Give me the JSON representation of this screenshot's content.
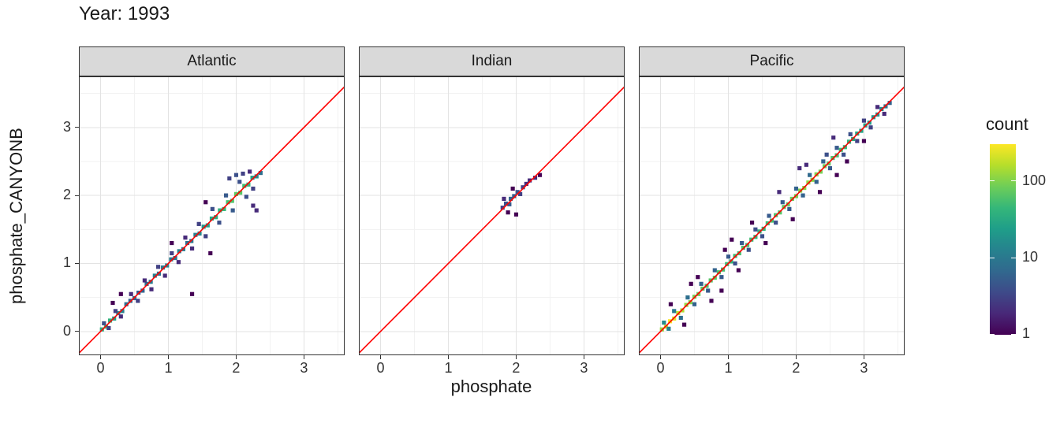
{
  "colors": {
    "background": "#FFFFFF",
    "reference_line": "#FF0000",
    "strip_fill": "#D9D9D9",
    "panel_border": "#333333",
    "grid_major": "#E3E3E3",
    "grid_minor": "#F2F2F2",
    "tick_text": "#333333",
    "title_text": "#1A1A1A",
    "legend_tick_mark": "#FFFFFF"
  },
  "chart_data": {
    "type": "heatmap",
    "subtype": "bin2d-faceted-scatter",
    "title": "Year: 1993",
    "xlabel": "phosphate",
    "ylabel": "phosphate_CANYONB",
    "x_ticks": [
      0,
      1,
      2,
      3
    ],
    "y_ticks": [
      0,
      1,
      2,
      3
    ],
    "xlim": [
      -0.32,
      3.6
    ],
    "ylim": [
      -0.35,
      3.75
    ],
    "grid": true,
    "bin_size": 0.06,
    "reference_line": {
      "type": "identity",
      "label": "y = x",
      "color": "#FF0000"
    },
    "legend": {
      "title": "count",
      "position": "right",
      "scale": "log10",
      "ticks": [
        100,
        10,
        1
      ],
      "min": 1,
      "max": 300
    },
    "colormap": {
      "name": "viridis",
      "stops": [
        [
          0.0,
          "#440154"
        ],
        [
          0.111,
          "#482878"
        ],
        [
          0.222,
          "#3e4a89"
        ],
        [
          0.333,
          "#31688e"
        ],
        [
          0.444,
          "#26828e"
        ],
        [
          0.556,
          "#1f9e89"
        ],
        [
          0.667,
          "#35b779"
        ],
        [
          0.778,
          "#6ece58"
        ],
        [
          0.889,
          "#b5de2b"
        ],
        [
          1.0,
          "#fde725"
        ]
      ]
    },
    "facets": [
      {
        "label": "Atlantic",
        "bins": [
          [
            0.02,
            0.03,
            35
          ],
          [
            0.08,
            0.07,
            50
          ],
          [
            0.14,
            0.16,
            40
          ],
          [
            0.2,
            0.19,
            25
          ],
          [
            0.26,
            0.27,
            18
          ],
          [
            0.32,
            0.3,
            12
          ],
          [
            0.38,
            0.4,
            8
          ],
          [
            0.44,
            0.45,
            6
          ],
          [
            0.5,
            0.49,
            7
          ],
          [
            0.56,
            0.57,
            5
          ],
          [
            0.62,
            0.6,
            6
          ],
          [
            0.68,
            0.7,
            8
          ],
          [
            0.74,
            0.73,
            10
          ],
          [
            0.8,
            0.82,
            12
          ],
          [
            0.86,
            0.85,
            9
          ],
          [
            0.92,
            0.94,
            11
          ],
          [
            0.98,
            0.97,
            14
          ],
          [
            1.04,
            1.06,
            10
          ],
          [
            1.1,
            1.08,
            9
          ],
          [
            1.16,
            1.18,
            12
          ],
          [
            1.22,
            1.21,
            10
          ],
          [
            1.28,
            1.3,
            8
          ],
          [
            1.34,
            1.33,
            9
          ],
          [
            1.4,
            1.42,
            12
          ],
          [
            1.46,
            1.44,
            15
          ],
          [
            1.52,
            1.54,
            20
          ],
          [
            1.58,
            1.56,
            25
          ],
          [
            1.64,
            1.66,
            30
          ],
          [
            1.7,
            1.68,
            35
          ],
          [
            1.76,
            1.78,
            40
          ],
          [
            1.82,
            1.8,
            45
          ],
          [
            1.88,
            1.9,
            55
          ],
          [
            1.94,
            1.92,
            60
          ],
          [
            2.0,
            2.02,
            70
          ],
          [
            2.06,
            2.04,
            65
          ],
          [
            2.12,
            2.14,
            50
          ],
          [
            2.18,
            2.16,
            40
          ],
          [
            2.24,
            2.26,
            25
          ],
          [
            2.3,
            2.28,
            15
          ],
          [
            2.36,
            2.33,
            8
          ],
          [
            0.05,
            0.12,
            4
          ],
          [
            0.12,
            0.05,
            3
          ],
          [
            0.22,
            0.3,
            3
          ],
          [
            0.3,
            0.22,
            2
          ],
          [
            0.45,
            0.55,
            2
          ],
          [
            0.55,
            0.45,
            3
          ],
          [
            0.65,
            0.75,
            2
          ],
          [
            0.75,
            0.62,
            2
          ],
          [
            0.85,
            0.95,
            3
          ],
          [
            0.95,
            0.82,
            2
          ],
          [
            1.05,
            1.15,
            3
          ],
          [
            1.15,
            1.02,
            2
          ],
          [
            1.25,
            1.38,
            2
          ],
          [
            1.35,
            1.22,
            2
          ],
          [
            1.45,
            1.58,
            3
          ],
          [
            1.55,
            1.4,
            3
          ],
          [
            1.65,
            1.8,
            4
          ],
          [
            1.75,
            1.6,
            4
          ],
          [
            1.85,
            2.0,
            5
          ],
          [
            1.95,
            1.78,
            5
          ],
          [
            2.05,
            2.2,
            4
          ],
          [
            2.15,
            1.98,
            4
          ],
          [
            2.25,
            2.1,
            3
          ],
          [
            1.9,
            2.25,
            3
          ],
          [
            2.0,
            2.3,
            4
          ],
          [
            2.1,
            2.32,
            3
          ],
          [
            2.2,
            2.35,
            2
          ],
          [
            1.35,
            0.55,
            1
          ],
          [
            1.62,
            1.15,
            1
          ],
          [
            1.05,
            1.3,
            1
          ],
          [
            2.3,
            1.78,
            2
          ],
          [
            2.25,
            1.85,
            2
          ],
          [
            1.55,
            1.9,
            1
          ],
          [
            0.3,
            0.55,
            1
          ],
          [
            0.18,
            0.42,
            1
          ]
        ]
      },
      {
        "label": "Indian",
        "bins": [
          [
            1.8,
            1.82,
            3
          ],
          [
            1.85,
            1.88,
            4
          ],
          [
            1.9,
            1.87,
            5
          ],
          [
            1.92,
            1.95,
            6
          ],
          [
            1.97,
            1.99,
            5
          ],
          [
            2.02,
            2.05,
            4
          ],
          [
            2.06,
            2.02,
            3
          ],
          [
            2.1,
            2.12,
            3
          ],
          [
            2.15,
            2.17,
            2
          ],
          [
            2.2,
            2.22,
            2
          ],
          [
            2.28,
            2.26,
            2
          ],
          [
            2.35,
            2.3,
            1
          ],
          [
            1.88,
            1.75,
            1
          ],
          [
            2.0,
            1.72,
            1
          ],
          [
            1.95,
            2.1,
            1
          ],
          [
            1.82,
            1.95,
            2
          ]
        ]
      },
      {
        "label": "Pacific",
        "bins": [
          [
            0.02,
            0.03,
            120
          ],
          [
            0.08,
            0.07,
            200
          ],
          [
            0.14,
            0.15,
            290
          ],
          [
            0.2,
            0.19,
            240
          ],
          [
            0.26,
            0.27,
            180
          ],
          [
            0.32,
            0.31,
            150
          ],
          [
            0.38,
            0.39,
            120
          ],
          [
            0.44,
            0.43,
            100
          ],
          [
            0.5,
            0.51,
            90
          ],
          [
            0.56,
            0.55,
            80
          ],
          [
            0.62,
            0.63,
            70
          ],
          [
            0.68,
            0.67,
            60
          ],
          [
            0.74,
            0.75,
            65
          ],
          [
            0.8,
            0.79,
            70
          ],
          [
            0.86,
            0.87,
            60
          ],
          [
            0.92,
            0.91,
            55
          ],
          [
            0.98,
            0.99,
            50
          ],
          [
            1.04,
            1.03,
            45
          ],
          [
            1.1,
            1.11,
            50
          ],
          [
            1.16,
            1.15,
            55
          ],
          [
            1.22,
            1.23,
            60
          ],
          [
            1.28,
            1.27,
            55
          ],
          [
            1.34,
            1.35,
            50
          ],
          [
            1.4,
            1.39,
            45
          ],
          [
            1.46,
            1.47,
            40
          ],
          [
            1.52,
            1.51,
            45
          ],
          [
            1.58,
            1.59,
            50
          ],
          [
            1.64,
            1.63,
            55
          ],
          [
            1.7,
            1.71,
            60
          ],
          [
            1.76,
            1.75,
            65
          ],
          [
            1.82,
            1.83,
            70
          ],
          [
            1.88,
            1.87,
            75
          ],
          [
            1.94,
            1.95,
            80
          ],
          [
            2.0,
            1.99,
            90
          ],
          [
            2.06,
            2.07,
            100
          ],
          [
            2.12,
            2.11,
            110
          ],
          [
            2.18,
            2.19,
            120
          ],
          [
            2.24,
            2.23,
            110
          ],
          [
            2.3,
            2.31,
            100
          ],
          [
            2.36,
            2.35,
            90
          ],
          [
            2.42,
            2.43,
            80
          ],
          [
            2.48,
            2.47,
            70
          ],
          [
            2.54,
            2.55,
            60
          ],
          [
            2.6,
            2.59,
            55
          ],
          [
            2.66,
            2.67,
            50
          ],
          [
            2.72,
            2.71,
            45
          ],
          [
            2.78,
            2.79,
            40
          ],
          [
            2.84,
            2.83,
            35
          ],
          [
            2.9,
            2.91,
            30
          ],
          [
            2.96,
            2.95,
            28
          ],
          [
            3.02,
            3.03,
            25
          ],
          [
            3.08,
            3.07,
            22
          ],
          [
            3.14,
            3.15,
            20
          ],
          [
            3.2,
            3.19,
            18
          ],
          [
            3.26,
            3.27,
            15
          ],
          [
            3.32,
            3.31,
            10
          ],
          [
            3.38,
            3.36,
            6
          ],
          [
            0.05,
            0.13,
            15
          ],
          [
            0.12,
            0.04,
            12
          ],
          [
            0.2,
            0.3,
            10
          ],
          [
            0.3,
            0.2,
            8
          ],
          [
            0.4,
            0.5,
            8
          ],
          [
            0.5,
            0.4,
            6
          ],
          [
            0.6,
            0.7,
            6
          ],
          [
            0.7,
            0.6,
            5
          ],
          [
            0.8,
            0.9,
            6
          ],
          [
            0.9,
            0.8,
            5
          ],
          [
            1.0,
            1.1,
            5
          ],
          [
            1.1,
            1.0,
            4
          ],
          [
            1.2,
            1.3,
            5
          ],
          [
            1.3,
            1.2,
            4
          ],
          [
            1.4,
            1.5,
            4
          ],
          [
            1.5,
            1.4,
            4
          ],
          [
            1.6,
            1.7,
            5
          ],
          [
            1.7,
            1.6,
            4
          ],
          [
            1.8,
            1.9,
            5
          ],
          [
            1.9,
            1.8,
            5
          ],
          [
            2.0,
            2.1,
            6
          ],
          [
            2.1,
            2.0,
            6
          ],
          [
            2.2,
            2.3,
            7
          ],
          [
            2.3,
            2.2,
            6
          ],
          [
            2.4,
            2.5,
            6
          ],
          [
            2.5,
            2.4,
            5
          ],
          [
            2.6,
            2.7,
            5
          ],
          [
            2.7,
            2.6,
            4
          ],
          [
            2.8,
            2.9,
            4
          ],
          [
            2.9,
            2.8,
            3
          ],
          [
            3.0,
            3.1,
            3
          ],
          [
            3.1,
            3.0,
            3
          ],
          [
            3.2,
            3.3,
            2
          ],
          [
            3.3,
            3.2,
            2
          ],
          [
            2.45,
            2.6,
            4
          ],
          [
            0.15,
            0.4,
            1
          ],
          [
            0.35,
            0.1,
            1
          ],
          [
            0.55,
            0.8,
            1
          ],
          [
            0.75,
            0.45,
            1
          ],
          [
            0.95,
            1.2,
            1
          ],
          [
            1.15,
            0.9,
            1
          ],
          [
            1.35,
            1.6,
            1
          ],
          [
            1.55,
            1.3,
            1
          ],
          [
            1.75,
            2.05,
            2
          ],
          [
            1.95,
            1.65,
            1
          ],
          [
            2.15,
            2.45,
            2
          ],
          [
            2.35,
            2.05,
            1
          ],
          [
            2.55,
            2.85,
            2
          ],
          [
            2.75,
            2.5,
            1
          ],
          [
            0.45,
            0.7,
            1
          ],
          [
            0.9,
            0.6,
            1
          ],
          [
            2.05,
            2.4,
            2
          ],
          [
            2.6,
            2.3,
            1
          ],
          [
            1.05,
            1.35,
            1
          ],
          [
            3.0,
            2.8,
            1
          ]
        ]
      }
    ]
  }
}
